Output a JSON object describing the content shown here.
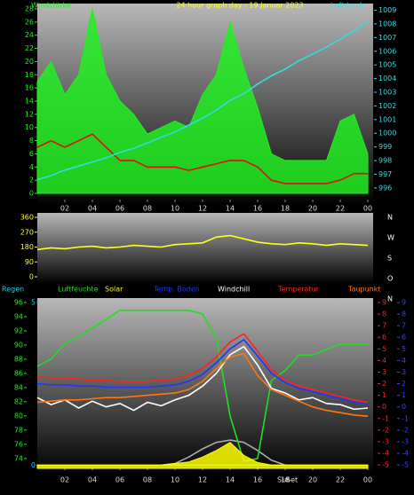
{
  "chart_data": [
    {
      "type": "line",
      "title": "24 hour graph day : 19 Januar 2023",
      "ylabel": "Windstärke",
      "y2label": "Luftdruck",
      "x": [
        0,
        1,
        2,
        3,
        4,
        5,
        6,
        7,
        8,
        9,
        10,
        11,
        12,
        13,
        14,
        15,
        16,
        17,
        18,
        19,
        20,
        21,
        22,
        23,
        24
      ],
      "xlim": [
        0,
        24
      ],
      "xticks": [
        {
          "value": 2,
          "label": "02"
        },
        {
          "value": 4,
          "label": "04"
        },
        {
          "value": 6,
          "label": "06"
        },
        {
          "value": 8,
          "label": "08"
        },
        10,
        12,
        14,
        16,
        18,
        20,
        22,
        {
          "value": 24,
          "label": "00"
        }
      ],
      "ylim": [
        0,
        28
      ],
      "yticks": [
        0,
        2,
        4,
        6,
        8,
        10,
        12,
        14,
        16,
        18,
        20,
        22,
        24,
        26,
        28
      ],
      "y2lim": [
        995.6,
        1009.1
      ],
      "y2ticks": [
        996,
        997,
        998,
        999,
        1000,
        1001,
        1002,
        1003,
        1004,
        1005,
        1006,
        1007,
        1008,
        1009
      ],
      "series": [
        {
          "kind": "area",
          "color": "#22ee22",
          "values": [
            17,
            20,
            15,
            18,
            28,
            18,
            14,
            12,
            9,
            10,
            11,
            10,
            15,
            18,
            26,
            19,
            13,
            6,
            5,
            5,
            5,
            5,
            11,
            12,
            6
          ]
        },
        {
          "kind": "line",
          "color": "#dd1111",
          "values": [
            7,
            8,
            7,
            8,
            9,
            7,
            5,
            5,
            4,
            4,
            4,
            3.5,
            4,
            4.5,
            5,
            5,
            4,
            2,
            1.5,
            1.5,
            1.5,
            1.5,
            2,
            3,
            3
          ]
        },
        {
          "kind": "line",
          "color": "#33dddd",
          "axis": "y2",
          "values": [
            996.6,
            996.9,
            997.3,
            997.6,
            997.9,
            998.2,
            998.6,
            998.9,
            999.3,
            999.7,
            1000.1,
            1000.6,
            1001.1,
            1001.7,
            1002.4,
            1002.9,
            1003.6,
            1004.2,
            1004.7,
            1005.3,
            1005.8,
            1006.3,
            1006.9,
            1007.5,
            1008.2
          ]
        }
      ]
    },
    {
      "type": "line",
      "compass": [
        "N",
        "W",
        "S",
        "O",
        "N"
      ],
      "x": [
        0,
        1,
        2,
        3,
        4,
        5,
        6,
        7,
        8,
        9,
        10,
        11,
        12,
        13,
        14,
        15,
        16,
        17,
        18,
        19,
        20,
        21,
        22,
        23,
        24
      ],
      "xlim": [
        0,
        24
      ],
      "ylim": [
        0,
        360
      ],
      "yticks": [
        0,
        90,
        180,
        270,
        360
      ],
      "series": [
        {
          "kind": "line",
          "color": "#ffff22",
          "values": [
            165,
            175,
            170,
            180,
            185,
            175,
            180,
            190,
            185,
            180,
            195,
            200,
            205,
            240,
            250,
            230,
            210,
            200,
            195,
            205,
            200,
            190,
            200,
            195,
            190
          ]
        }
      ]
    },
    {
      "type": "line",
      "sun_labels": [
        "Sur",
        "Set"
      ],
      "x": [
        0,
        1,
        2,
        3,
        4,
        5,
        6,
        7,
        8,
        9,
        10,
        11,
        12,
        13,
        14,
        15,
        16,
        17,
        18,
        19,
        20,
        21,
        22,
        23,
        24
      ],
      "xlim": [
        0,
        24
      ],
      "xticks": [
        {
          "value": 2,
          "label": "02"
        },
        {
          "value": 4,
          "label": "04"
        },
        {
          "value": 6,
          "label": "06"
        },
        {
          "value": 8,
          "label": "08"
        },
        10,
        12,
        14,
        16,
        18,
        20,
        22,
        {
          "value": 24,
          "label": "00"
        }
      ],
      "ylim": [
        72.6,
        96
      ],
      "yticks": [
        74,
        76,
        78,
        80,
        82,
        84,
        86,
        88,
        90,
        92,
        94,
        96
      ],
      "y2lim": [
        -5.3,
        9
      ],
      "y2ticks": [
        -5,
        -4,
        -3,
        -2,
        -1,
        0,
        1,
        2,
        3,
        4,
        5,
        6,
        7,
        8,
        9
      ],
      "y4ticks": [
        -5,
        -4,
        -3,
        -2,
        -1,
        0,
        1,
        2,
        3,
        4,
        5,
        6,
        7,
        8,
        9
      ],
      "y3lim": [
        -0.1,
        5
      ],
      "y3ticks": [
        0,
        5
      ],
      "solar_max": {
        "color": "#aaaaaa",
        "axis": "y3",
        "values": [
          0,
          0,
          0,
          0,
          0,
          0,
          0,
          0,
          0,
          0,
          0.05,
          0.25,
          0.5,
          0.7,
          0.77,
          0.7,
          0.45,
          0.15,
          0,
          0,
          0,
          0,
          0,
          0,
          0
        ]
      },
      "series": [
        {
          "name": "Regen",
          "kind": "line",
          "color": "#22ccdd",
          "axis": "y3",
          "values": [
            0,
            0,
            0,
            0,
            0,
            0,
            0,
            0,
            0,
            0,
            0,
            0,
            0,
            0,
            0,
            0,
            0,
            0,
            0,
            0,
            0,
            0,
            0,
            0,
            0
          ]
        },
        {
          "name": "Luftfeuchte",
          "kind": "line",
          "color": "#22dd22",
          "values": [
            87,
            88,
            90.2,
            91.2,
            92.4,
            93.6,
            94.9,
            94.9,
            94.9,
            94.9,
            94.9,
            94.9,
            94.4,
            91,
            80,
            73.6,
            74,
            85,
            86.4,
            88.6,
            88.6,
            89.4,
            90.1,
            90.1,
            90.1
          ]
        },
        {
          "name": "Solar",
          "kind": "area",
          "color": "#ffff00",
          "axis": "y3",
          "values": [
            0,
            0,
            0,
            0,
            0,
            0,
            0,
            0,
            0,
            0,
            0.05,
            0.1,
            0.25,
            0.45,
            0.7,
            0.3,
            0.08,
            0,
            0,
            0,
            0,
            0,
            0,
            0,
            0
          ]
        },
        {
          "name": "Temp. Boden",
          "kind": "line",
          "color": "#2233ff",
          "axis": "y2",
          "values": [
            2.0,
            1.9,
            1.9,
            1.8,
            1.8,
            1.7,
            1.7,
            1.7,
            1.7,
            1.8,
            1.9,
            2.2,
            2.8,
            3.8,
            5.0,
            5.8,
            4.4,
            2.9,
            2.1,
            1.6,
            1.3,
            1.0,
            0.7,
            0.4,
            0.2
          ]
        },
        {
          "name": "Windchill",
          "kind": "line",
          "color": "#ffffff",
          "axis": "y2",
          "values": [
            0.8,
            0.2,
            0.6,
            -0.1,
            0.5,
            0.0,
            0.3,
            -0.3,
            0.4,
            0.1,
            0.6,
            1.0,
            1.8,
            2.9,
            4.5,
            5.2,
            3.6,
            1.6,
            1.2,
            0.6,
            0.8,
            0.3,
            0.2,
            -0.2,
            -0.1
          ]
        },
        {
          "name": "Temperatur",
          "kind": "line",
          "color": "#ff2222",
          "axis": "y2",
          "values": [
            2.6,
            2.5,
            2.5,
            2.4,
            2.3,
            2.3,
            2.2,
            2.2,
            2.2,
            2.3,
            2.4,
            2.7,
            3.3,
            4.3,
            5.6,
            6.3,
            4.8,
            3.2,
            2.3,
            1.8,
            1.5,
            1.2,
            0.9,
            0.6,
            0.4
          ]
        },
        {
          "name": "Taupunkt",
          "kind": "line",
          "color": "#ff7711",
          "axis": "y2",
          "values": [
            0.4,
            0.5,
            0.6,
            0.6,
            0.7,
            0.8,
            0.8,
            0.9,
            1.0,
            1.1,
            1.2,
            1.5,
            2.2,
            3.3,
            4.3,
            4.6,
            2.7,
            1.5,
            1.0,
            0.5,
            0.0,
            -0.3,
            -0.5,
            -0.7,
            -0.8
          ]
        }
      ]
    }
  ]
}
